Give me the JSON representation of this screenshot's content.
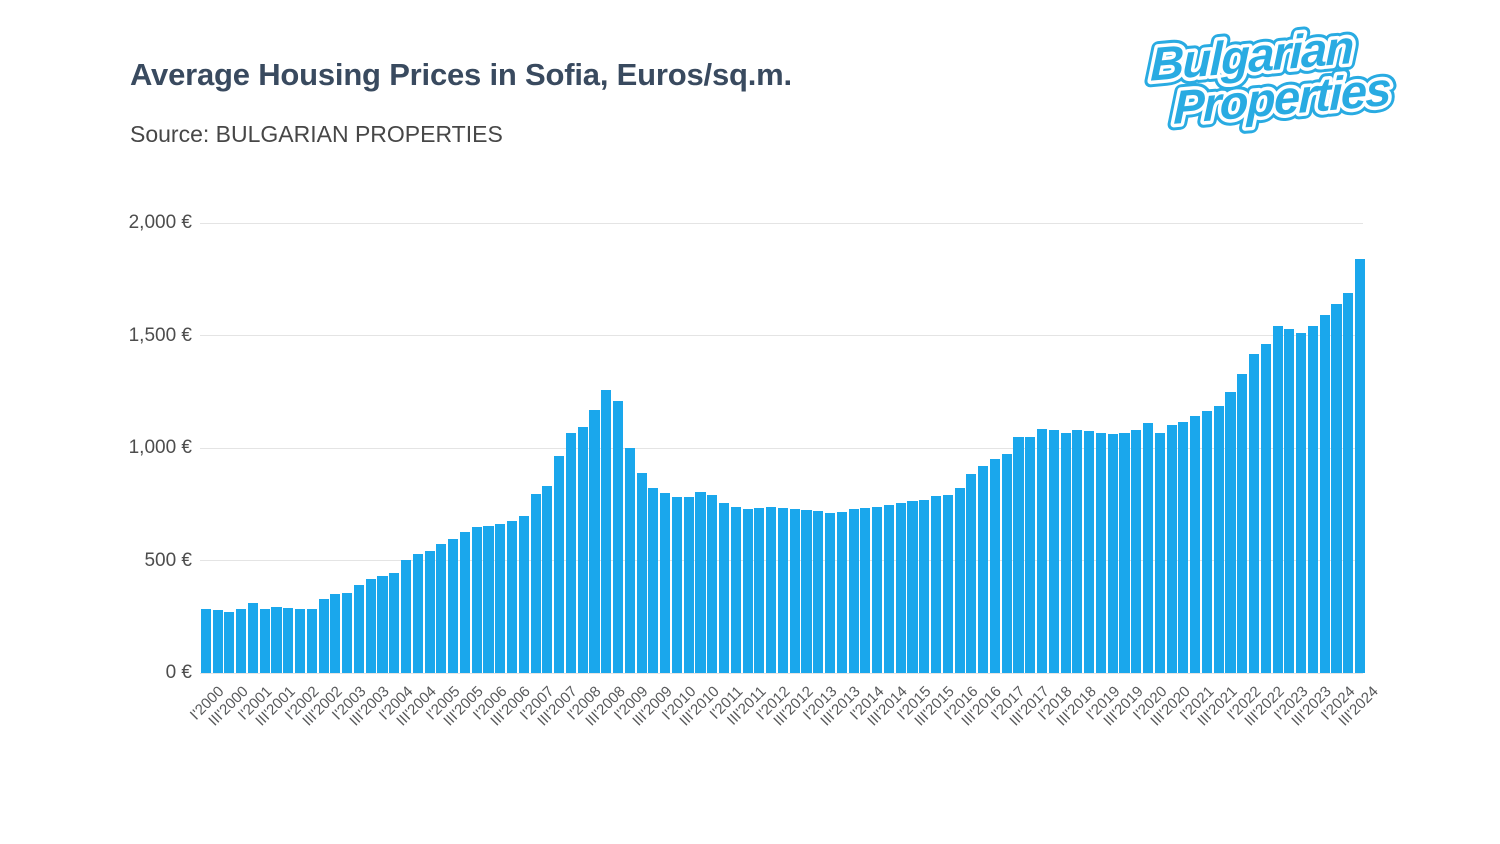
{
  "header": {
    "title": "Average Housing Prices in Sofia, Euros/sq.m.",
    "source": "Source: BULGARIAN PROPERTIES"
  },
  "logo": {
    "line1": "Bulgarian",
    "line2": "Properties",
    "color": "#29abe2"
  },
  "chart_data": {
    "type": "bar",
    "title": "Average Housing Prices in Sofia, Euros/sq.m.",
    "ylabel": "",
    "xlabel": "",
    "unit": "Euros/sq.m.",
    "bar_color": "#1aa7ec",
    "grid_color": "#e4e4e4",
    "grid": "horizontal",
    "legend_position": "none",
    "ylim": [
      0,
      2000
    ],
    "y_ticks": [
      {
        "value": 0,
        "label": "0 €"
      },
      {
        "value": 500,
        "label": "500 €"
      },
      {
        "value": 1000,
        "label": "1,000 €"
      },
      {
        "value": 1500,
        "label": "1,500 €"
      },
      {
        "value": 2000,
        "label": "2,000 €"
      }
    ],
    "x_tick_every": 2,
    "categories": [
      "I'2000",
      "II'2000",
      "III'2000",
      "IV'2000",
      "I'2001",
      "II'2001",
      "III'2001",
      "IV'2001",
      "I'2002",
      "II'2002",
      "III'2002",
      "IV'2002",
      "I'2003",
      "II'2003",
      "III'2003",
      "IV'2003",
      "I'2004",
      "II'2004",
      "III'2004",
      "IV'2004",
      "I'2005",
      "II'2005",
      "III'2005",
      "IV'2005",
      "I'2006",
      "II'2006",
      "III'2006",
      "IV'2006",
      "I'2007",
      "II'2007",
      "III'2007",
      "IV'2007",
      "I'2008",
      "II'2008",
      "III'2008",
      "IV'2008",
      "I'2009",
      "II'2009",
      "III'2009",
      "IV'2009",
      "I'2010",
      "II'2010",
      "III'2010",
      "IV'2010",
      "I'2011",
      "II'2011",
      "III'2011",
      "IV'2011",
      "I'2012",
      "II'2012",
      "III'2012",
      "IV'2012",
      "I'2013",
      "II'2013",
      "III'2013",
      "IV'2013",
      "I'2014",
      "II'2014",
      "III'2014",
      "IV'2014",
      "I'2015",
      "II'2015",
      "III'2015",
      "IV'2015",
      "I'2016",
      "II'2016",
      "III'2016",
      "IV'2016",
      "I'2017",
      "II'2017",
      "III'2017",
      "IV'2017",
      "I'2018",
      "II'2018",
      "III'2018",
      "IV'2018",
      "I'2019",
      "II'2019",
      "III'2019",
      "IV'2019",
      "I'2020",
      "II'2020",
      "III'2020",
      "IV'2020",
      "I'2021",
      "II'2021",
      "III'2021",
      "IV'2021",
      "I'2022",
      "II'2022",
      "III'2022",
      "IV'2022",
      "I'2023",
      "II'2023",
      "III'2023",
      "IV'2023",
      "I'2024",
      "II'2024",
      "III'2024"
    ],
    "values": [
      283,
      280,
      273,
      283,
      310,
      283,
      294,
      290,
      283,
      284,
      331,
      352,
      356,
      390,
      416,
      430,
      445,
      504,
      531,
      541,
      575,
      595,
      627,
      650,
      652,
      664,
      674,
      698,
      797,
      831,
      963,
      1066,
      1093,
      1170,
      1260,
      1207,
      1000,
      887,
      822,
      798,
      782,
      782,
      806,
      790,
      754,
      737,
      731,
      733,
      740,
      735,
      727,
      725,
      719,
      709,
      716,
      727,
      732,
      738,
      745,
      754,
      765,
      770,
      788,
      790,
      824,
      886,
      922,
      952,
      974,
      1050,
      1049,
      1086,
      1081,
      1068,
      1078,
      1075,
      1068,
      1063,
      1068,
      1081,
      1111,
      1066,
      1103,
      1115,
      1142,
      1165,
      1188,
      1248,
      1331,
      1416,
      1464,
      1541,
      1530,
      1510,
      1542,
      1592,
      1640,
      1690,
      1840
    ]
  }
}
